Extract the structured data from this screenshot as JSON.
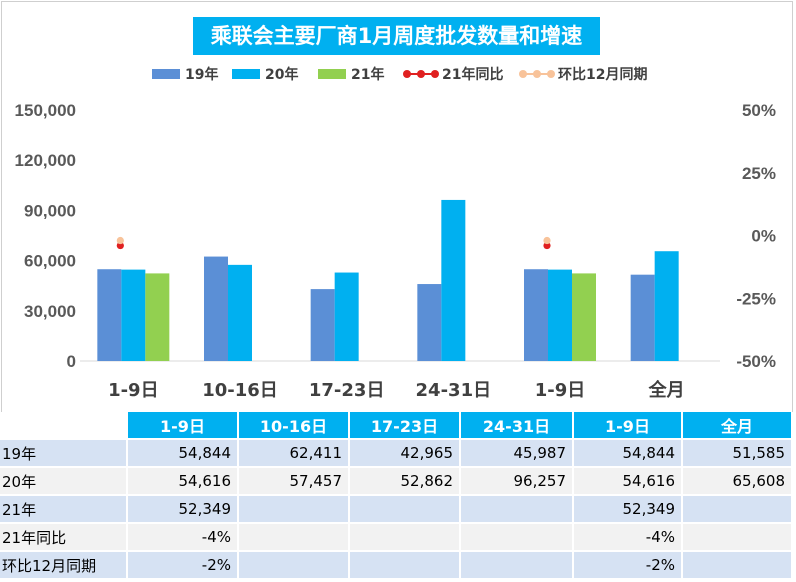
{
  "chart_data": {
    "type": "bar",
    "title": "乘联会主要厂商1月周度批发数量和增速",
    "categories": [
      "1-9日",
      "10-16日",
      "17-23日",
      "24-31日",
      "1-9日",
      "全月"
    ],
    "series": [
      {
        "name": "19年",
        "kind": "bar",
        "color": "#5b8fd6",
        "values": [
          54844,
          62411,
          42965,
          45987,
          54844,
          51585
        ]
      },
      {
        "name": "20年",
        "kind": "bar",
        "color": "#00b0f0",
        "values": [
          54616,
          57457,
          52862,
          96257,
          54616,
          65608
        ]
      },
      {
        "name": "21年",
        "kind": "bar",
        "color": "#92d050",
        "values": [
          52349,
          null,
          null,
          null,
          52349,
          null
        ]
      },
      {
        "name": "21年同比",
        "kind": "line",
        "axis": "right",
        "color": "#e02020",
        "values": [
          -4,
          null,
          null,
          null,
          -4,
          null
        ]
      },
      {
        "name": "环比12月同期",
        "kind": "line",
        "axis": "right",
        "color": "#f8c39a",
        "values": [
          -2,
          null,
          null,
          null,
          -2,
          null
        ]
      }
    ],
    "y_left": {
      "min": 0,
      "max": 150000,
      "ticks": [
        "0",
        "30,000",
        "60,000",
        "90,000",
        "120,000",
        "150,000"
      ]
    },
    "y_right": {
      "min": -50,
      "max": 50,
      "ticks": [
        "-50%",
        "-25%",
        "0%",
        "25%",
        "50%"
      ]
    },
    "legend_position": "top"
  },
  "table": {
    "headers": [
      "1-9日",
      "10-16日",
      "17-23日",
      "24-31日",
      "1-9日",
      "全月"
    ],
    "rows": [
      {
        "label": "19年",
        "cells": [
          "54,844",
          "62,411",
          "42,965",
          "45,987",
          "54,844",
          "51,585"
        ]
      },
      {
        "label": "20年",
        "cells": [
          "54,616",
          "57,457",
          "52,862",
          "96,257",
          "54,616",
          "65,608"
        ]
      },
      {
        "label": "21年",
        "cells": [
          "52,349",
          "",
          "",
          "",
          "52,349",
          ""
        ]
      },
      {
        "label": "21年同比",
        "cells": [
          "-4%",
          "",
          "",
          "",
          "-4%",
          ""
        ]
      },
      {
        "label": "环比12月同期",
        "cells": [
          "-2%",
          "",
          "",
          "",
          "-2%",
          ""
        ]
      }
    ]
  }
}
